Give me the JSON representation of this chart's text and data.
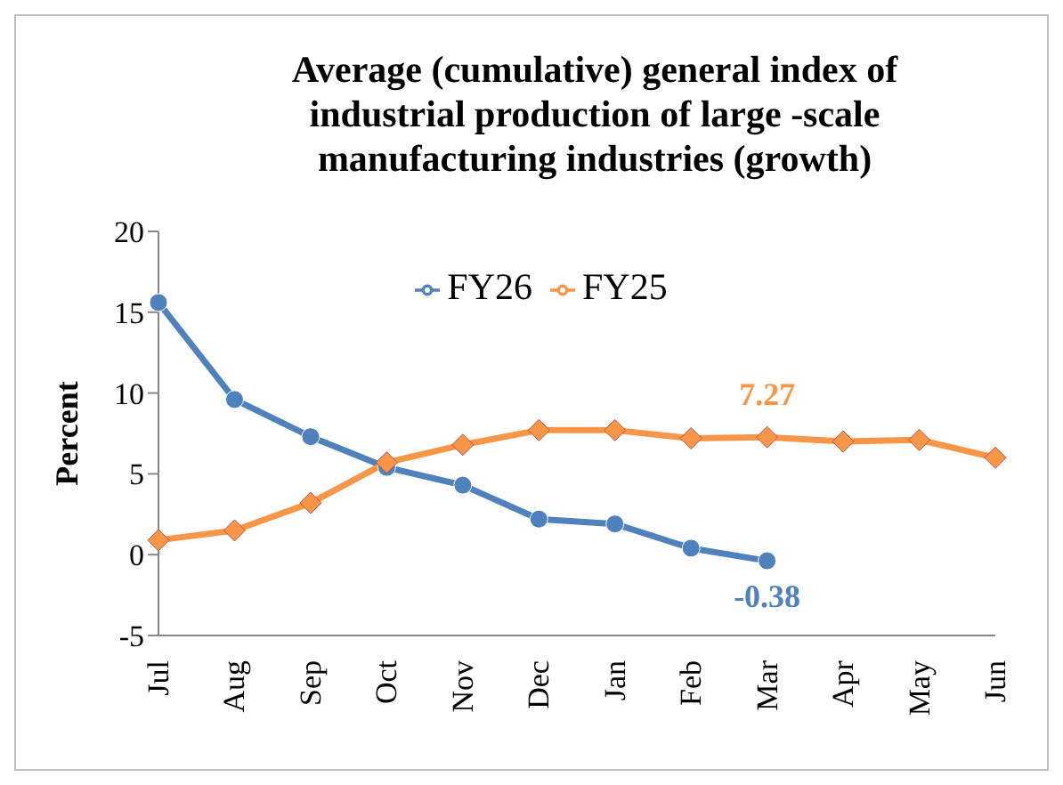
{
  "chart_data": {
    "type": "line",
    "title": "Average (cumulative) general index of industrial production of large -scale manufacturing industries (growth)",
    "ylabel": "Percent",
    "categories": [
      "Jul",
      "Aug",
      "Sep",
      "Oct",
      "Nov",
      "Dec",
      "Jan",
      "Feb",
      "Mar",
      "Apr",
      "May",
      "Jun"
    ],
    "series": [
      {
        "name": "FY26",
        "color": "#4f81bd",
        "marker": "circle",
        "values": [
          15.6,
          9.6,
          7.3,
          5.4,
          4.3,
          2.2,
          1.9,
          0.4,
          -0.38,
          null,
          null,
          null
        ],
        "value_labels": [
          null,
          null,
          null,
          null,
          null,
          null,
          null,
          null,
          "-0.38",
          null,
          null,
          null
        ]
      },
      {
        "name": "FY25",
        "color": "#f79646",
        "marker": "diamond",
        "values": [
          0.9,
          1.5,
          3.2,
          5.7,
          6.8,
          7.7,
          7.7,
          7.2,
          7.27,
          7.0,
          7.1,
          6.0
        ],
        "value_labels": [
          null,
          null,
          null,
          null,
          null,
          null,
          null,
          null,
          "7.27",
          null,
          null,
          null
        ]
      }
    ],
    "ylim": [
      -5,
      20
    ],
    "yticks": [
      -5,
      0,
      5,
      10,
      15,
      20
    ],
    "legend": "top"
  }
}
